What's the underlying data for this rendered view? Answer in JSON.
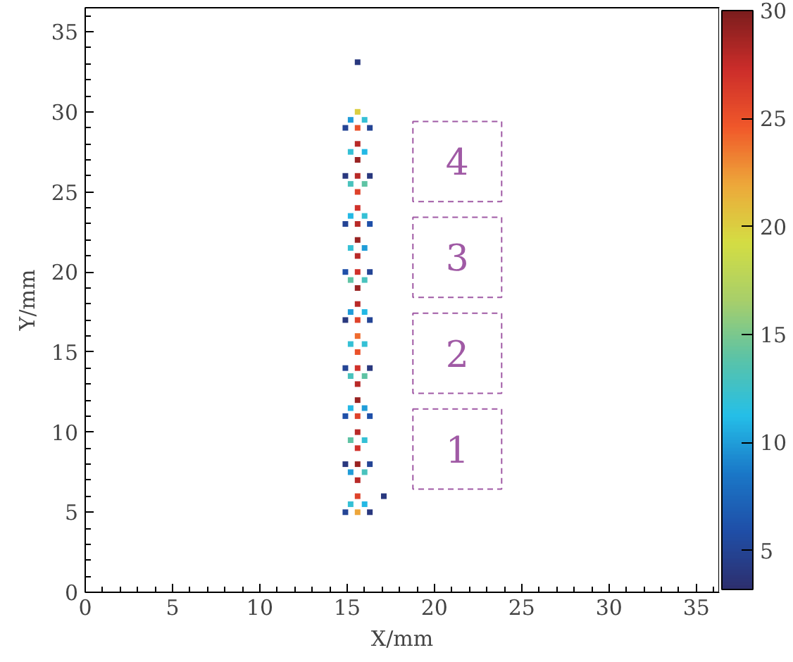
{
  "chart_data": {
    "type": "scatter",
    "xlabel": "X/mm",
    "ylabel": "Y/mm",
    "x": [
      15.6,
      15.6,
      15.6,
      15.6,
      15.6,
      15.6,
      15.6,
      15.6,
      15.6,
      15.6,
      15.6,
      15.6,
      15.6,
      15.6,
      15.6,
      15.6,
      15.6,
      15.6,
      15.6,
      15.6,
      15.6,
      15.6,
      15.6,
      15.6,
      15.6,
      15.6,
      15.2,
      15.2,
      15.2,
      15.2,
      15.2,
      15.2,
      15.2,
      15.2,
      15.2,
      15.2,
      15.2,
      15.2,
      15.2,
      16.0,
      16.0,
      16.0,
      16.0,
      16.0,
      16.0,
      16.0,
      16.0,
      16.0,
      16.0,
      16.0,
      16.0,
      16.0,
      14.9,
      14.9,
      14.9,
      14.9,
      14.9,
      14.9,
      14.9,
      14.9,
      14.9,
      16.3,
      16.3,
      16.3,
      16.3,
      16.3,
      16.3,
      16.3,
      16.3,
      16.3,
      15.6,
      17.1
    ],
    "values": [
      5,
      6,
      7,
      8,
      9,
      10,
      11,
      12,
      13,
      14,
      15,
      16,
      17,
      18,
      19,
      20,
      21,
      22,
      23,
      24,
      25,
      26,
      27,
      28,
      29,
      30,
      5.5,
      7.5,
      9.5,
      11.5,
      13.5,
      15.5,
      17.5,
      19.5,
      21.5,
      23.5,
      25.5,
      27.5,
      29.5,
      5.5,
      7.5,
      9.5,
      11.5,
      13.5,
      15.5,
      17.5,
      19.5,
      21.5,
      23.5,
      25.5,
      27.5,
      29.5,
      5,
      8,
      11,
      14,
      17,
      20,
      23,
      26,
      29,
      5,
      8,
      11,
      14,
      17,
      20,
      23,
      26,
      29,
      33.1,
      6.0
    ],
    "cvalues": [
      22,
      26,
      28,
      29,
      27,
      28,
      26,
      29,
      28,
      27,
      25,
      24,
      26,
      28,
      29,
      27,
      28,
      29,
      28,
      27,
      26,
      28,
      29,
      28,
      25,
      20,
      12,
      10,
      14,
      11,
      13,
      12,
      10,
      14,
      12,
      11,
      13,
      12,
      10,
      11,
      13,
      12,
      10,
      14,
      12,
      11,
      13,
      10,
      12,
      14,
      11,
      12,
      5,
      4,
      6,
      5,
      4,
      6,
      5,
      4,
      5,
      4,
      5,
      6,
      4,
      5,
      5,
      6,
      4,
      5,
      4,
      4
    ],
    "marker": "square",
    "grid": false,
    "xlim": [
      0,
      36.3
    ],
    "ylim": [
      0,
      36.5
    ],
    "xticks": [
      0,
      5,
      10,
      15,
      20,
      25,
      30,
      35
    ],
    "yticks": [
      0,
      5,
      10,
      15,
      20,
      25,
      30,
      35
    ],
    "clim": [
      3.2,
      30
    ],
    "cticks": [
      5,
      10,
      15,
      20,
      25,
      30
    ],
    "annotations": [
      "4",
      "3",
      "2",
      "1"
    ]
  }
}
